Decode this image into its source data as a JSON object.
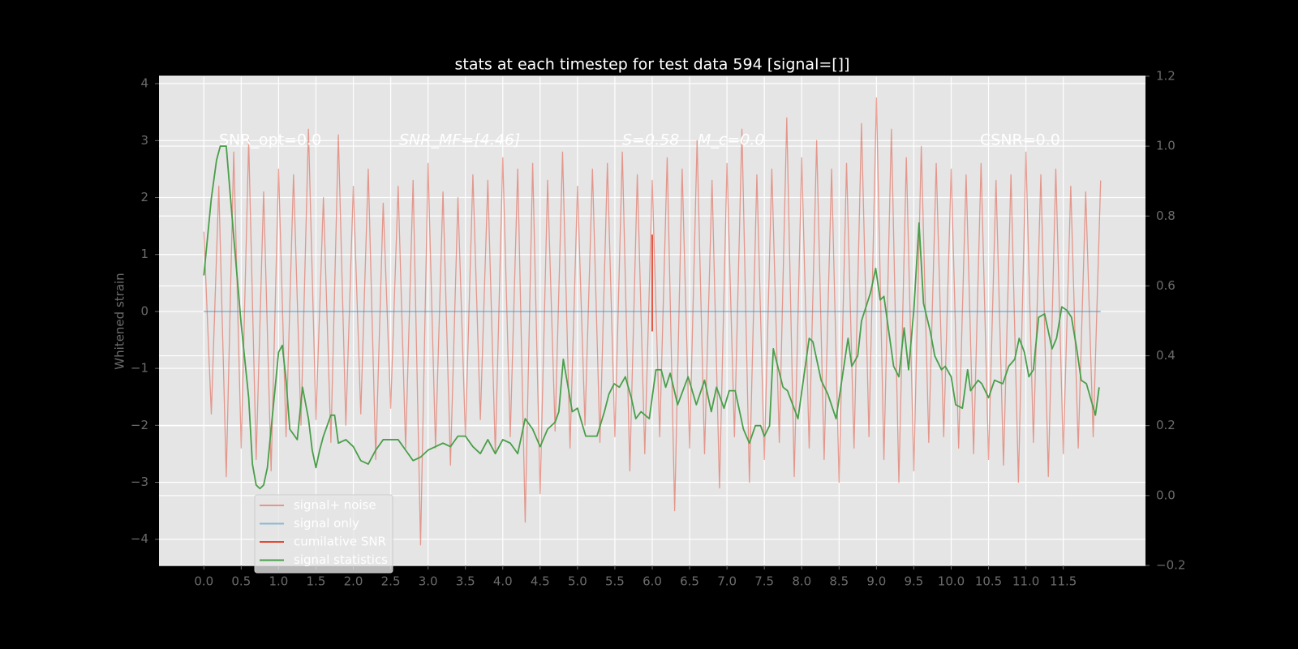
{
  "chart_data": {
    "type": "line",
    "title": "stats at each timestep for test data 594 [signal=[]]",
    "y_label": "Whitened strain",
    "annotations": [
      "SNR_opt=0.0",
      "SNR_MF=[4.46]",
      "S=0.58",
      "M_c=0.0",
      "CSNR=0.0"
    ],
    "xlim": [
      -0.6,
      12.6
    ],
    "ylim": [
      -4.46,
      4.13
    ],
    "y2lim": [
      -0.2,
      1.2
    ],
    "xticks": [
      {
        "value": 0,
        "label": "0.0"
      },
      0.5,
      {
        "value": 1,
        "label": "1.0"
      },
      1.5,
      {
        "value": 2,
        "label": "2.0"
      },
      2.5,
      {
        "value": 3,
        "label": "3.0"
      },
      3.5,
      {
        "value": 4,
        "label": "4.0"
      },
      4.5,
      {
        "value": 5,
        "label": "5.0"
      },
      5.5,
      {
        "value": 6,
        "label": "6.0"
      },
      6.5,
      {
        "value": 7,
        "label": "7.0"
      },
      7.5,
      {
        "value": 8,
        "label": "8.0"
      },
      8.5,
      {
        "value": 9,
        "label": "9.0"
      },
      9.5,
      {
        "value": 10,
        "label": "10.0"
      },
      10.5,
      {
        "value": 11,
        "label": "11.0"
      },
      11.5
    ],
    "yticks": [
      {
        "value": -4,
        "label": "−4"
      },
      {
        "value": -3,
        "label": "−3"
      },
      {
        "value": -2,
        "label": "−2"
      },
      {
        "value": -1,
        "label": "−1"
      },
      0,
      1,
      2,
      3,
      4
    ],
    "y2ticks": [
      {
        "value": -0.2,
        "label": "−0.2"
      },
      {
        "value": 0,
        "label": "0.0"
      },
      0.2,
      0.4,
      0.6,
      0.8,
      {
        "value": 1,
        "label": "1.0"
      },
      1.2
    ],
    "grid": true,
    "legend": "lower left",
    "series": [
      {
        "name": "signal+ noise",
        "color": "#E24A33",
        "alpha": 0.5,
        "x": [
          0,
          0.1,
          0.2,
          0.3,
          0.4,
          0.5,
          0.6,
          0.7,
          0.8,
          0.9,
          1,
          1.1,
          1.2,
          1.3,
          1.4,
          1.5,
          1.6,
          1.7,
          1.8,
          1.9,
          2,
          2.1,
          2.2,
          2.3,
          2.4,
          2.5,
          2.6,
          2.7,
          2.8,
          2.9,
          3,
          3.1,
          3.2,
          3.3,
          3.4,
          3.5,
          3.6,
          3.7,
          3.8,
          3.9,
          4,
          4.1,
          4.2,
          4.3,
          4.4,
          4.5,
          4.6,
          4.7,
          4.8,
          4.9,
          5,
          5.1,
          5.2,
          5.3,
          5.4,
          5.5,
          5.6,
          5.7,
          5.8,
          5.9,
          6,
          6.1,
          6.2,
          6.3,
          6.4,
          6.5,
          6.6,
          6.7,
          6.8,
          6.9,
          7,
          7.1,
          7.2,
          7.3,
          7.4,
          7.5,
          7.6,
          7.7,
          7.8,
          7.9,
          8,
          8.1,
          8.2,
          8.3,
          8.4,
          8.5,
          8.6,
          8.7,
          8.8,
          8.9,
          9,
          9.1,
          9.2,
          9.3,
          9.4,
          9.5,
          9.6,
          9.7,
          9.8,
          9.9,
          10,
          10.1,
          10.2,
          10.3,
          10.4,
          10.5,
          10.6,
          10.7,
          10.8,
          10.9,
          11,
          11.1,
          11.2,
          11.3,
          11.4,
          11.5,
          11.6,
          11.7,
          11.8,
          11.9,
          12
        ],
        "values": [
          1.4,
          -1.8,
          2.2,
          -2.9,
          2.8,
          -2.4,
          3.0,
          -2.6,
          2.1,
          -2.8,
          2.5,
          -2.2,
          2.4,
          -2.0,
          3.2,
          -1.9,
          2.0,
          -2.3,
          3.1,
          -2.0,
          2.2,
          -1.8,
          2.5,
          -2.6,
          1.9,
          -1.7,
          2.2,
          -2.4,
          2.3,
          -4.1,
          2.6,
          -2.4,
          2.1,
          -2.7,
          2.0,
          -2.2,
          2.4,
          -1.9,
          2.3,
          -2.5,
          2.7,
          -2.2,
          2.5,
          -3.7,
          2.6,
          -3.2,
          2.3,
          -2.1,
          2.8,
          -2.4,
          2.2,
          -2.0,
          2.5,
          -2.3,
          2.6,
          -2.2,
          2.8,
          -2.8,
          2.4,
          -2.5,
          2.3,
          -2.2,
          2.7,
          -3.5,
          2.5,
          -2.4,
          3.0,
          -2.5,
          2.3,
          -3.1,
          2.6,
          -2.2,
          3.2,
          -3.0,
          2.4,
          -2.6,
          2.5,
          -2.3,
          3.4,
          -2.9,
          2.7,
          -2.4,
          3.0,
          -2.6,
          2.5,
          -3.0,
          2.6,
          -2.4,
          3.3,
          -2.2,
          3.75,
          -2.6,
          3.2,
          -3.0,
          2.7,
          -2.8,
          2.9,
          -2.3,
          2.6,
          -2.2,
          2.5,
          -2.4,
          2.4,
          -2.5,
          2.6,
          -2.6,
          2.3,
          -2.7,
          2.4,
          -3.0,
          2.8,
          -2.3,
          2.4,
          -2.9,
          2.5,
          -2.5,
          2.2,
          -2.4,
          2.1,
          -2.2,
          2.3
        ]
      },
      {
        "name": "signal only",
        "color": "#348ABD",
        "alpha": 0.5,
        "x": [
          0,
          12
        ],
        "values": [
          0,
          0
        ]
      },
      {
        "name": "cumilative SNR",
        "color": "#E24A33",
        "alpha": 1,
        "x": [
          6,
          6
        ],
        "values": [
          1.35,
          -0.35
        ]
      },
      {
        "name": "signal statistics",
        "color": "#4a9e4a",
        "alpha": 1,
        "axis": "y2",
        "x": [
          0,
          0.1,
          0.17,
          0.22,
          0.3,
          0.4,
          0.5,
          0.6,
          0.65,
          0.7,
          0.75,
          0.8,
          0.85,
          0.9,
          0.95,
          1,
          1.05,
          1.1,
          1.15,
          1.25,
          1.32,
          1.4,
          1.45,
          1.5,
          1.55,
          1.6,
          1.7,
          1.75,
          1.8,
          1.9,
          2,
          2.1,
          2.2,
          2.3,
          2.4,
          2.5,
          2.6,
          2.7,
          2.8,
          2.9,
          3,
          3.1,
          3.2,
          3.3,
          3.4,
          3.5,
          3.6,
          3.7,
          3.8,
          3.9,
          4,
          4.1,
          4.2,
          4.3,
          4.4,
          4.5,
          4.6,
          4.7,
          4.75,
          4.81,
          4.93,
          5,
          5.11,
          5.26,
          5.36,
          5.42,
          5.49,
          5.56,
          5.64,
          5.72,
          5.78,
          5.85,
          5.96,
          6.05,
          6.12,
          6.18,
          6.24,
          6.34,
          6.48,
          6.59,
          6.7,
          6.79,
          6.86,
          6.96,
          7.03,
          7.11,
          7.22,
          7.3,
          7.38,
          7.45,
          7.5,
          7.57,
          7.62,
          7.75,
          7.81,
          7.95,
          8.1,
          8.15,
          8.26,
          8.35,
          8.46,
          8.62,
          8.67,
          8.75,
          8.8,
          8.92,
          8.99,
          9.05,
          9.1,
          9.23,
          9.3,
          9.37,
          9.43,
          9.5,
          9.57,
          9.63,
          9.72,
          9.78,
          9.87,
          9.92,
          10,
          10.06,
          10.15,
          10.22,
          10.26,
          10.36,
          10.41,
          10.5,
          10.58,
          10.69,
          10.77,
          10.85,
          10.91,
          10.98,
          11.04,
          11.1,
          11.17,
          11.25,
          11.35,
          11.41,
          11.48,
          11.55,
          11.61,
          11.68,
          11.74,
          11.81,
          11.93,
          11.98
        ],
        "values": [
          0.63,
          0.85,
          0.96,
          1.0,
          1.0,
          0.74,
          0.49,
          0.28,
          0.09,
          0.03,
          0.02,
          0.03,
          0.08,
          0.19,
          0.3,
          0.41,
          0.43,
          0.33,
          0.19,
          0.16,
          0.31,
          0.22,
          0.13,
          0.08,
          0.13,
          0.17,
          0.23,
          0.23,
          0.15,
          0.16,
          0.14,
          0.1,
          0.09,
          0.13,
          0.16,
          0.16,
          0.16,
          0.13,
          0.1,
          0.11,
          0.13,
          0.14,
          0.15,
          0.14,
          0.17,
          0.17,
          0.14,
          0.12,
          0.16,
          0.12,
          0.16,
          0.15,
          0.12,
          0.22,
          0.19,
          0.14,
          0.19,
          0.21,
          0.24,
          0.39,
          0.24,
          0.25,
          0.17,
          0.17,
          0.24,
          0.29,
          0.32,
          0.31,
          0.34,
          0.28,
          0.22,
          0.24,
          0.22,
          0.36,
          0.36,
          0.31,
          0.35,
          0.26,
          0.34,
          0.26,
          0.33,
          0.24,
          0.31,
          0.25,
          0.3,
          0.3,
          0.19,
          0.15,
          0.2,
          0.2,
          0.17,
          0.2,
          0.42,
          0.31,
          0.3,
          0.22,
          0.45,
          0.44,
          0.33,
          0.29,
          0.22,
          0.45,
          0.37,
          0.4,
          0.5,
          0.58,
          0.65,
          0.56,
          0.57,
          0.37,
          0.34,
          0.48,
          0.36,
          0.53,
          0.78,
          0.55,
          0.47,
          0.4,
          0.36,
          0.37,
          0.34,
          0.26,
          0.25,
          0.36,
          0.3,
          0.33,
          0.32,
          0.28,
          0.33,
          0.32,
          0.37,
          0.39,
          0.45,
          0.41,
          0.34,
          0.36,
          0.51,
          0.52,
          0.42,
          0.45,
          0.54,
          0.53,
          0.51,
          0.42,
          0.33,
          0.32,
          0.23,
          0.31
        ]
      }
    ]
  }
}
